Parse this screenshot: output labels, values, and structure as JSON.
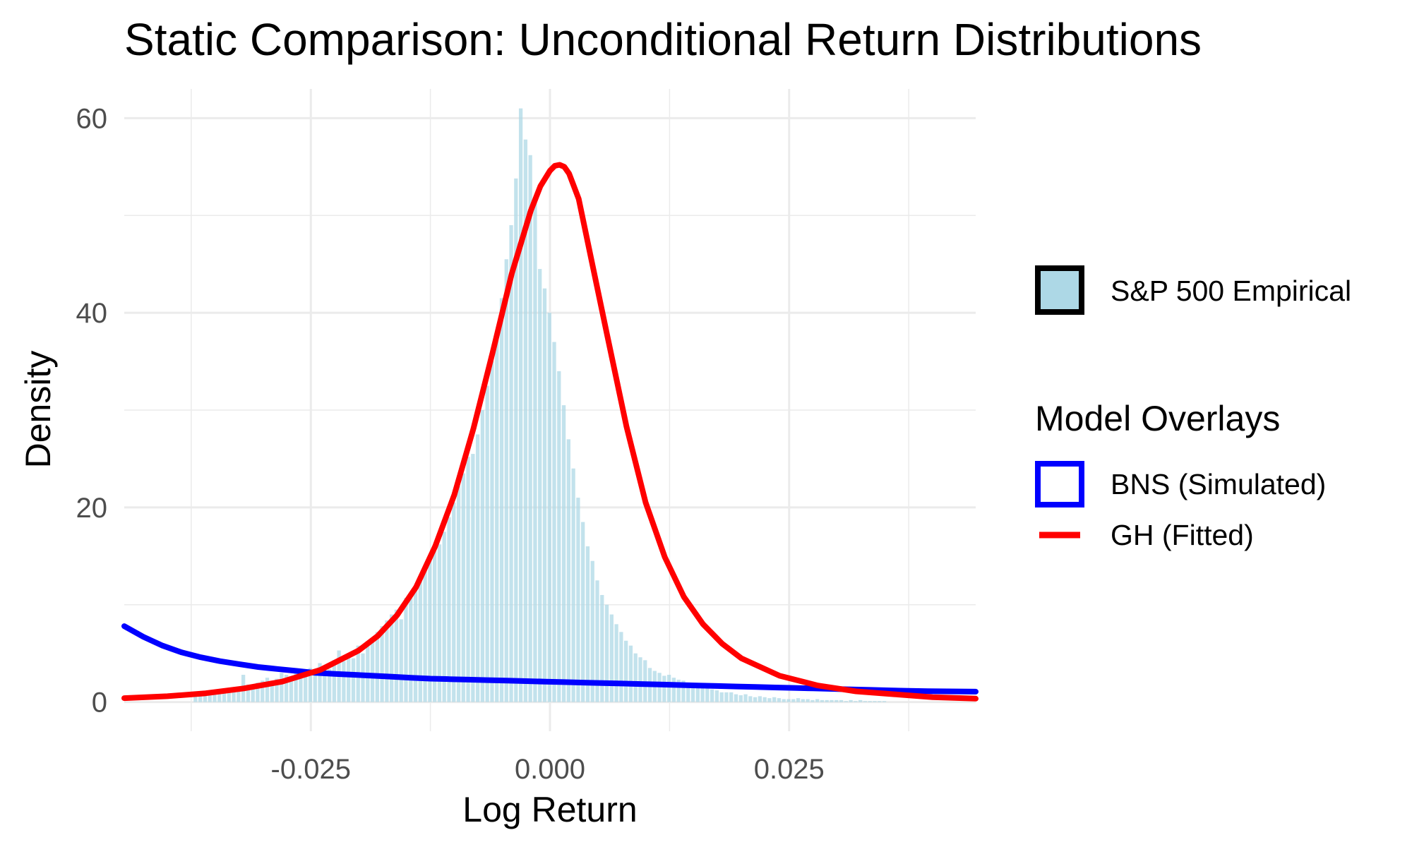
{
  "chart_data": {
    "type": "histogram",
    "title": "Static Comparison: Unconditional Return Distributions",
    "xlabel": "Log Return",
    "ylabel": "Density",
    "xlim": [
      -0.0445,
      0.0445
    ],
    "ylim": [
      -3.0,
      63.0
    ],
    "x_ticks": [
      -0.025,
      0.0,
      0.025
    ],
    "x_tick_labels": [
      "-0.025",
      "0.000",
      "0.025"
    ],
    "x_minor_ticks": [
      -0.0375,
      -0.0125,
      0.0125,
      0.0375
    ],
    "y_ticks": [
      0,
      20,
      40,
      60
    ],
    "y_tick_labels": [
      "0",
      "20",
      "40",
      "60"
    ],
    "y_minor_ticks": [
      10,
      30,
      50
    ],
    "grid": true,
    "legend_position": "right",
    "histogram": {
      "name": "S&P 500 Empirical",
      "color": "#add8e6",
      "opacity": 0.75,
      "bin_width": 0.0005,
      "bin_centers": [
        -0.037,
        -0.0365,
        -0.036,
        -0.0355,
        -0.035,
        -0.0345,
        -0.034,
        -0.0335,
        -0.033,
        -0.0325,
        -0.032,
        -0.0315,
        -0.031,
        -0.0305,
        -0.03,
        -0.0295,
        -0.029,
        -0.0285,
        -0.028,
        -0.0275,
        -0.027,
        -0.0265,
        -0.026,
        -0.0255,
        -0.025,
        -0.0245,
        -0.024,
        -0.0235,
        -0.023,
        -0.0225,
        -0.022,
        -0.0215,
        -0.021,
        -0.0205,
        -0.02,
        -0.0195,
        -0.019,
        -0.0185,
        -0.018,
        -0.0175,
        -0.017,
        -0.0165,
        -0.016,
        -0.0155,
        -0.015,
        -0.0145,
        -0.014,
        -0.0135,
        -0.013,
        -0.0125,
        -0.012,
        -0.0115,
        -0.011,
        -0.0105,
        -0.01,
        -0.0095,
        -0.009,
        -0.0085,
        -0.008,
        -0.0075,
        -0.007,
        -0.0065,
        -0.006,
        -0.0055,
        -0.005,
        -0.0045,
        -0.004,
        -0.0035,
        -0.003,
        -0.0025,
        -0.002,
        -0.0015,
        -0.001,
        -0.0005,
        0.0,
        0.0005,
        0.001,
        0.0015,
        0.002,
        0.0025,
        0.003,
        0.0035,
        0.004,
        0.0045,
        0.005,
        0.0055,
        0.006,
        0.0065,
        0.007,
        0.0075,
        0.008,
        0.0085,
        0.009,
        0.0095,
        0.01,
        0.0105,
        0.011,
        0.0115,
        0.012,
        0.0125,
        0.013,
        0.0135,
        0.014,
        0.0145,
        0.015,
        0.0155,
        0.016,
        0.0165,
        0.017,
        0.0175,
        0.018,
        0.0185,
        0.019,
        0.0195,
        0.02,
        0.0205,
        0.021,
        0.0215,
        0.022,
        0.0225,
        0.023,
        0.0235,
        0.024,
        0.0245,
        0.025,
        0.0255,
        0.026,
        0.0265,
        0.027,
        0.0275,
        0.028,
        0.0285,
        0.029,
        0.0295,
        0.03,
        0.0305,
        0.031,
        0.0315,
        0.032,
        0.0325,
        0.033,
        0.0335,
        0.034,
        0.0345,
        0.035
      ],
      "densities": [
        0.6,
        0.7,
        0.8,
        0.8,
        1.0,
        1.2,
        0.9,
        1.4,
        1.2,
        1.3,
        2.8,
        1.8,
        1.5,
        2.0,
        2.2,
        2.5,
        2.0,
        2.4,
        3.0,
        2.8,
        2.2,
        3.2,
        2.5,
        3.0,
        3.5,
        3.3,
        4.0,
        3.6,
        3.4,
        4.3,
        5.3,
        4.2,
        4.8,
        4.5,
        5.8,
        5.0,
        6.0,
        6.5,
        7.2,
        7.8,
        8.4,
        9.0,
        9.5,
        8.5,
        10.7,
        10.7,
        11.5,
        12.5,
        14.0,
        14.8,
        15.5,
        16.2,
        17.5,
        19.0,
        20.5,
        22.2,
        23.5,
        25.2,
        25.5,
        27.5,
        30.0,
        32.5,
        35.0,
        38.0,
        41.5,
        45.5,
        49.0,
        53.8,
        61.0,
        57.8,
        56.2,
        51.5,
        44.5,
        42.5,
        40.0,
        37.0,
        34.0,
        30.5,
        27.0,
        24.0,
        21.0,
        18.5,
        16.0,
        14.5,
        12.5,
        11.0,
        10.0,
        9.0,
        8.0,
        7.2,
        6.3,
        5.8,
        5.0,
        4.6,
        4.3,
        3.5,
        3.2,
        3.0,
        2.7,
        2.8,
        2.5,
        2.3,
        2.2,
        2.0,
        1.7,
        1.5,
        1.6,
        1.5,
        1.3,
        1.2,
        1.0,
        1.0,
        1.0,
        0.8,
        0.7,
        0.8,
        0.6,
        0.5,
        0.6,
        0.5,
        0.4,
        0.5,
        0.4,
        0.3,
        0.3,
        0.3,
        0.4,
        0.3,
        0.3,
        0.2,
        0.3,
        0.2,
        0.2,
        0.2,
        0.2,
        0.2,
        0.1,
        0.2,
        0.1,
        0.2,
        0.1,
        0.1,
        0.1,
        0.1,
        0.1
      ]
    },
    "series": [
      {
        "name": "BNS (Simulated)",
        "type": "line",
        "color": "#0000ff",
        "x": [
          -0.0445,
          -0.0425,
          -0.0405,
          -0.0385,
          -0.0365,
          -0.0345,
          -0.0325,
          -0.0305,
          -0.0285,
          -0.0265,
          -0.0245,
          -0.0225,
          -0.0205,
          -0.0185,
          -0.0165,
          -0.0145,
          -0.0125,
          -0.0105,
          -0.0085,
          -0.0065,
          -0.0045,
          -0.0025,
          -0.0005,
          0.0015,
          0.0035,
          0.0055,
          0.0075,
          0.0095,
          0.0115,
          0.0135,
          0.0155,
          0.0175,
          0.0195,
          0.0215,
          0.0235,
          0.0255,
          0.0275,
          0.0295,
          0.0315,
          0.0335,
          0.0355,
          0.0375,
          0.0395,
          0.0415,
          0.0435,
          0.0445
        ],
        "y": [
          7.8,
          6.7,
          5.8,
          5.1,
          4.6,
          4.2,
          3.9,
          3.6,
          3.4,
          3.2,
          3.0,
          2.9,
          2.8,
          2.7,
          2.6,
          2.5,
          2.4,
          2.35,
          2.3,
          2.25,
          2.2,
          2.15,
          2.1,
          2.05,
          2.0,
          1.95,
          1.9,
          1.85,
          1.8,
          1.75,
          1.7,
          1.65,
          1.6,
          1.55,
          1.5,
          1.45,
          1.4,
          1.35,
          1.3,
          1.25,
          1.2,
          1.15,
          1.12,
          1.1,
          1.08,
          1.07
        ]
      },
      {
        "name": "GH (Fitted)",
        "type": "line",
        "color": "#ff0000",
        "x": [
          -0.0445,
          -0.04,
          -0.036,
          -0.032,
          -0.028,
          -0.024,
          -0.02,
          -0.018,
          -0.016,
          -0.014,
          -0.012,
          -0.01,
          -0.008,
          -0.006,
          -0.004,
          -0.002,
          -0.001,
          0.0,
          0.0005,
          0.001,
          0.0015,
          0.002,
          0.003,
          0.004,
          0.006,
          0.008,
          0.01,
          0.012,
          0.014,
          0.016,
          0.018,
          0.02,
          0.024,
          0.028,
          0.032,
          0.036,
          0.04,
          0.0445
        ],
        "y": [
          0.4,
          0.6,
          0.9,
          1.4,
          2.1,
          3.3,
          5.3,
          6.8,
          8.9,
          11.8,
          16.0,
          21.3,
          28.1,
          35.9,
          44.0,
          50.5,
          53.0,
          54.6,
          55.1,
          55.2,
          55.0,
          54.3,
          51.7,
          47.0,
          37.6,
          28.3,
          20.5,
          14.9,
          10.8,
          8.0,
          6.0,
          4.5,
          2.7,
          1.7,
          1.1,
          0.8,
          0.5,
          0.35
        ]
      }
    ],
    "legend": {
      "fill_entry_label": "S&P 500 Empirical",
      "overlay_title": "Model Overlays",
      "overlay_entries": [
        "BNS (Simulated)",
        "GH (Fitted)"
      ]
    }
  }
}
